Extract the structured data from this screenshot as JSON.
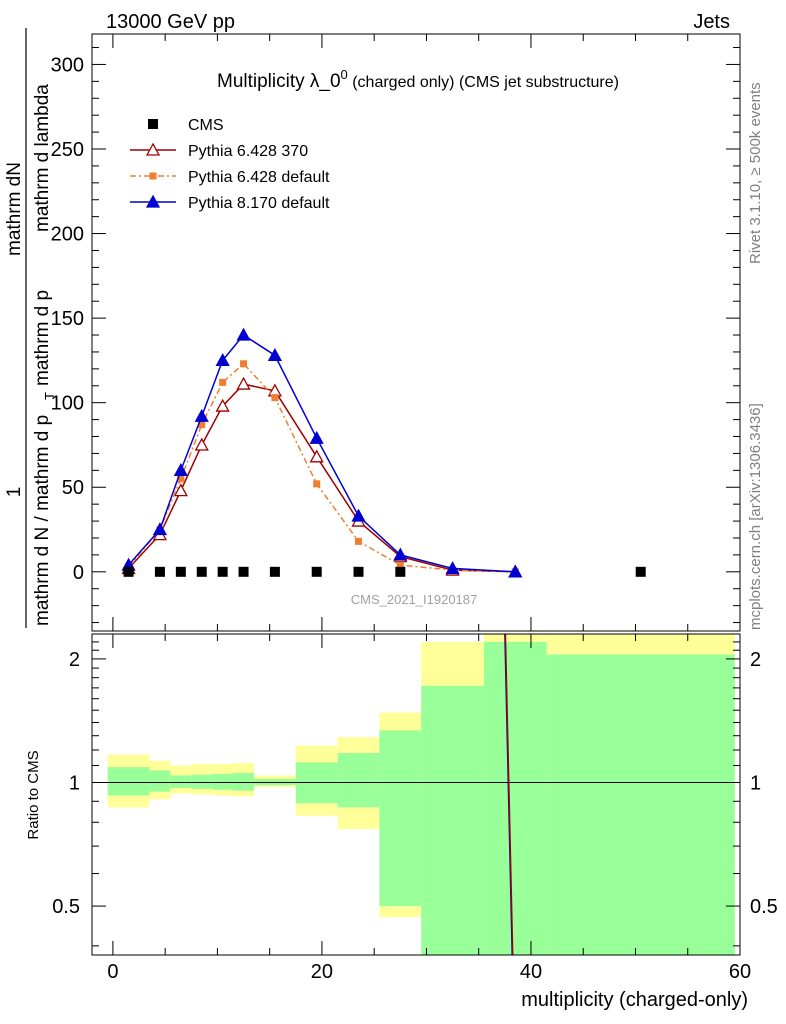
{
  "header": {
    "left": "13000 GeV pp",
    "right": "Jets"
  },
  "side_labels": {
    "rivet": "Rivet 3.1.10, ≥ 500k events",
    "mcplots": "mcplots.cern.ch [arXiv:1306.3436]"
  },
  "chart_data": [
    {
      "type": "line",
      "title_main": "Multiplicity λ_0",
      "title_sup": "0",
      "title_rest": " (charged only) (CMS jet substructure)",
      "ylabel_numerator": "1",
      "ylabel_line1": "mathrm d N / mathrm d p",
      "ylabel_sub": "T",
      "ylabel_line2": "mathrm dN",
      "ylabel_line3": "mathrm d p",
      "ylabel_line4": "mathrm d lambda",
      "analysis_tag": "CMS_2021_I1920187",
      "xlim": [
        -2,
        60
      ],
      "ylim": [
        -35,
        318
      ],
      "yticks": [
        0,
        50,
        100,
        150,
        200,
        250,
        300
      ],
      "ytick_labels": [
        "0",
        "50",
        "100",
        "150",
        "200",
        "250",
        "300"
      ],
      "legend_position": "top-left",
      "series": [
        {
          "name": "CMS",
          "marker": "square",
          "color": "#000000",
          "x": [
            1.5,
            4.5,
            6.5,
            8.5,
            10.5,
            12.5,
            15.5,
            19.5,
            23.5,
            27.5,
            50.5
          ],
          "y": [
            0,
            0,
            0,
            0,
            0,
            0,
            0,
            0,
            0,
            0,
            0
          ]
        },
        {
          "name": "Pythia 6.428 370",
          "marker": "open-triangle",
          "color": "#a00000",
          "line": "solid",
          "x": [
            1.5,
            4.5,
            6.5,
            8.5,
            10.5,
            12.5,
            15.5,
            19.5,
            23.5,
            27.5,
            32.5,
            38.5
          ],
          "y": [
            2,
            22,
            48,
            75,
            98,
            111,
            107,
            68,
            30,
            9,
            1,
            0
          ]
        },
        {
          "name": "Pythia 6.428 default",
          "marker": "square",
          "color": "#f07e30",
          "line": "dashdot",
          "x": [
            1.5,
            4.5,
            6.5,
            8.5,
            10.5,
            12.5,
            15.5,
            19.5,
            23.5,
            27.5,
            32.5,
            38.5
          ],
          "y": [
            3,
            25,
            55,
            87,
            112,
            123,
            103,
            52,
            18,
            4,
            1,
            0
          ]
        },
        {
          "name": "Pythia 8.170 default",
          "marker": "filled-triangle",
          "color": "#0000d0",
          "line": "solid",
          "x": [
            1.5,
            4.5,
            6.5,
            8.5,
            10.5,
            12.5,
            15.5,
            19.5,
            23.5,
            27.5,
            32.5,
            38.5
          ],
          "y": [
            4,
            25,
            60,
            92,
            125,
            140,
            128,
            79,
            33,
            10,
            2,
            0
          ]
        }
      ]
    },
    {
      "type": "area",
      "ylabel": "Ratio to CMS",
      "xlabel": "multiplicity (charged-only)",
      "xlim": [
        -2,
        60
      ],
      "ylim": [
        0.38,
        2.3
      ],
      "log_y": true,
      "yticks": [
        0.5,
        1,
        2
      ],
      "ytick_labels": [
        "0.5",
        "1",
        "2"
      ],
      "xticks": [
        0,
        20,
        40,
        60
      ],
      "xtick_labels": [
        "0",
        "20",
        "40",
        "60"
      ],
      "bins": [
        {
          "xlo": -0.5,
          "xhi": 3.5,
          "yellow": [
            0.87,
            1.17
          ],
          "green": [
            0.93,
            1.09
          ]
        },
        {
          "xlo": 3.5,
          "xhi": 5.5,
          "yellow": [
            0.91,
            1.13
          ],
          "green": [
            0.95,
            1.07
          ]
        },
        {
          "xlo": 5.5,
          "xhi": 7.5,
          "yellow": [
            0.94,
            1.1
          ],
          "green": [
            0.97,
            1.04
          ]
        },
        {
          "xlo": 7.5,
          "xhi": 9.5,
          "yellow": [
            0.935,
            1.11
          ],
          "green": [
            0.965,
            1.045
          ]
        },
        {
          "xlo": 9.5,
          "xhi": 11.5,
          "yellow": [
            0.93,
            1.11
          ],
          "green": [
            0.96,
            1.05
          ]
        },
        {
          "xlo": 11.5,
          "xhi": 13.5,
          "yellow": [
            0.925,
            1.115
          ],
          "green": [
            0.955,
            1.055
          ]
        },
        {
          "xlo": 13.5,
          "xhi": 17.5,
          "yellow": [
            0.975,
            1.04
          ],
          "green": [
            0.985,
            1.02
          ]
        },
        {
          "xlo": 17.5,
          "xhi": 21.5,
          "yellow": [
            0.83,
            1.23
          ],
          "green": [
            0.89,
            1.12
          ]
        },
        {
          "xlo": 21.5,
          "xhi": 25.5,
          "yellow": [
            0.77,
            1.29
          ],
          "green": [
            0.87,
            1.18
          ]
        },
        {
          "xlo": 25.5,
          "xhi": 29.5,
          "yellow": [
            0.47,
            1.48
          ],
          "green": [
            0.5,
            1.34
          ]
        },
        {
          "xlo": 29.5,
          "xhi": 35.5,
          "yellow": [
            0.3,
            2.2
          ],
          "green": [
            0.3,
            1.72
          ]
        },
        {
          "xlo": 35.5,
          "xhi": 41.5,
          "yellow": [
            0.3,
            3.0
          ],
          "green": [
            0.3,
            2.2
          ]
        },
        {
          "xlo": 41.5,
          "xhi": 59.5,
          "yellow": [
            0.3,
            3.0
          ],
          "green": [
            0.3,
            2.05
          ]
        }
      ],
      "ratio_line": {
        "x": [
          37.5,
          38.2
        ],
        "y": [
          2.6,
          0.3
        ],
        "colors": [
          "#0000d0",
          "#a00000"
        ]
      },
      "colors": {
        "yellow": "#ffff99",
        "green": "#99ff99"
      }
    }
  ]
}
